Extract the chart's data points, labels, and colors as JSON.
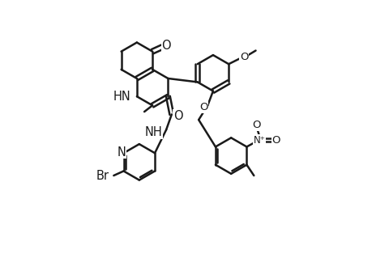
{
  "bg": "#ffffff",
  "lc": "#1a1a1a",
  "lw": 1.8,
  "fs": 10.5,
  "xlim": [
    -1,
    15
  ],
  "ylim": [
    -3.5,
    10.5
  ]
}
